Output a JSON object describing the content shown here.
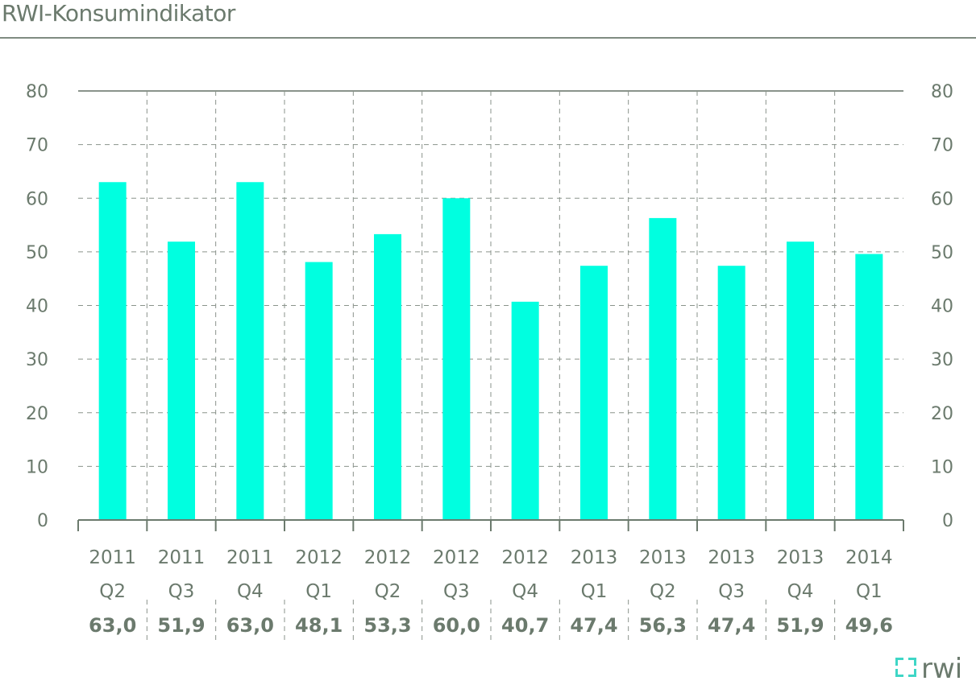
{
  "title": "RWI-Konsumindikator",
  "logo_text": "rwi",
  "colors": {
    "bar": "#00ffe0",
    "axis": "#6b7a6d",
    "grid": "#8a938b",
    "logo_accent": "#3fd6c6"
  },
  "chart_data": {
    "type": "bar",
    "title": "RWI-Konsumindikator",
    "categories": [
      [
        "2011",
        "Q2"
      ],
      [
        "2011",
        "Q3"
      ],
      [
        "2011",
        "Q4"
      ],
      [
        "2012",
        "Q1"
      ],
      [
        "2012",
        "Q2"
      ],
      [
        "2012",
        "Q3"
      ],
      [
        "2012",
        "Q4"
      ],
      [
        "2013",
        "Q1"
      ],
      [
        "2013",
        "Q2"
      ],
      [
        "2013",
        "Q3"
      ],
      [
        "2013",
        "Q4"
      ],
      [
        "2014",
        "Q1"
      ]
    ],
    "values": [
      63.0,
      51.9,
      63.0,
      48.1,
      53.3,
      60.0,
      40.7,
      47.4,
      56.3,
      47.4,
      51.9,
      49.6
    ],
    "data_labels": [
      "63,0",
      "51,9",
      "63,0",
      "48,1",
      "53,3",
      "60,0",
      "40,7",
      "47,4",
      "56,3",
      "47,4",
      "51,9",
      "49,6"
    ],
    "ylim": [
      0,
      80
    ],
    "yticks": [
      0,
      10,
      20,
      30,
      40,
      50,
      60,
      70,
      80
    ],
    "secondary_y_axis": true,
    "grid": true,
    "xlabel": "",
    "ylabel": ""
  }
}
